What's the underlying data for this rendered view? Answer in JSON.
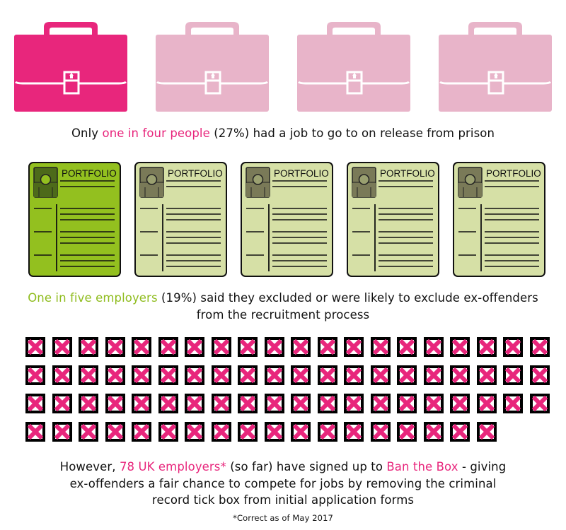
{
  "colors": {
    "pink": "#e8267c",
    "pink_light": "#e8b4c9",
    "green": "#93c01f",
    "green_light": "#d6e0a6",
    "green_photo": "#4d6a1a",
    "light_photo": "#7a7a58"
  },
  "briefcases": {
    "icon": "briefcase-icon",
    "total": 4,
    "highlighted": 1
  },
  "stat1": {
    "pre": "Only ",
    "highlight": "one in four people",
    "post": " (27%) had a job to go to on release from prison"
  },
  "portfolios": {
    "icon": "portfolio-icon",
    "label": "PORTFOLIO",
    "total": 5,
    "highlighted": 1
  },
  "stat2": {
    "highlight": "One in five employers",
    "post": " (19%) said they excluded or were likely to exclude ex-offenders",
    "line2": "from the recruitment process"
  },
  "boxes": {
    "icon": "crossed-box-icon",
    "total": 78,
    "per_row": 20
  },
  "stat3": {
    "pre": "However, ",
    "highlight1": "78 UK employers*",
    "mid": " (so far) have signed up to ",
    "highlight2": "Ban the Box",
    "post": " - giving",
    "line2": "ex-offenders a fair chance to compete for jobs by removing the criminal",
    "line3": "record tick box from initial application forms"
  },
  "footnote": "*Correct as of May 2017"
}
